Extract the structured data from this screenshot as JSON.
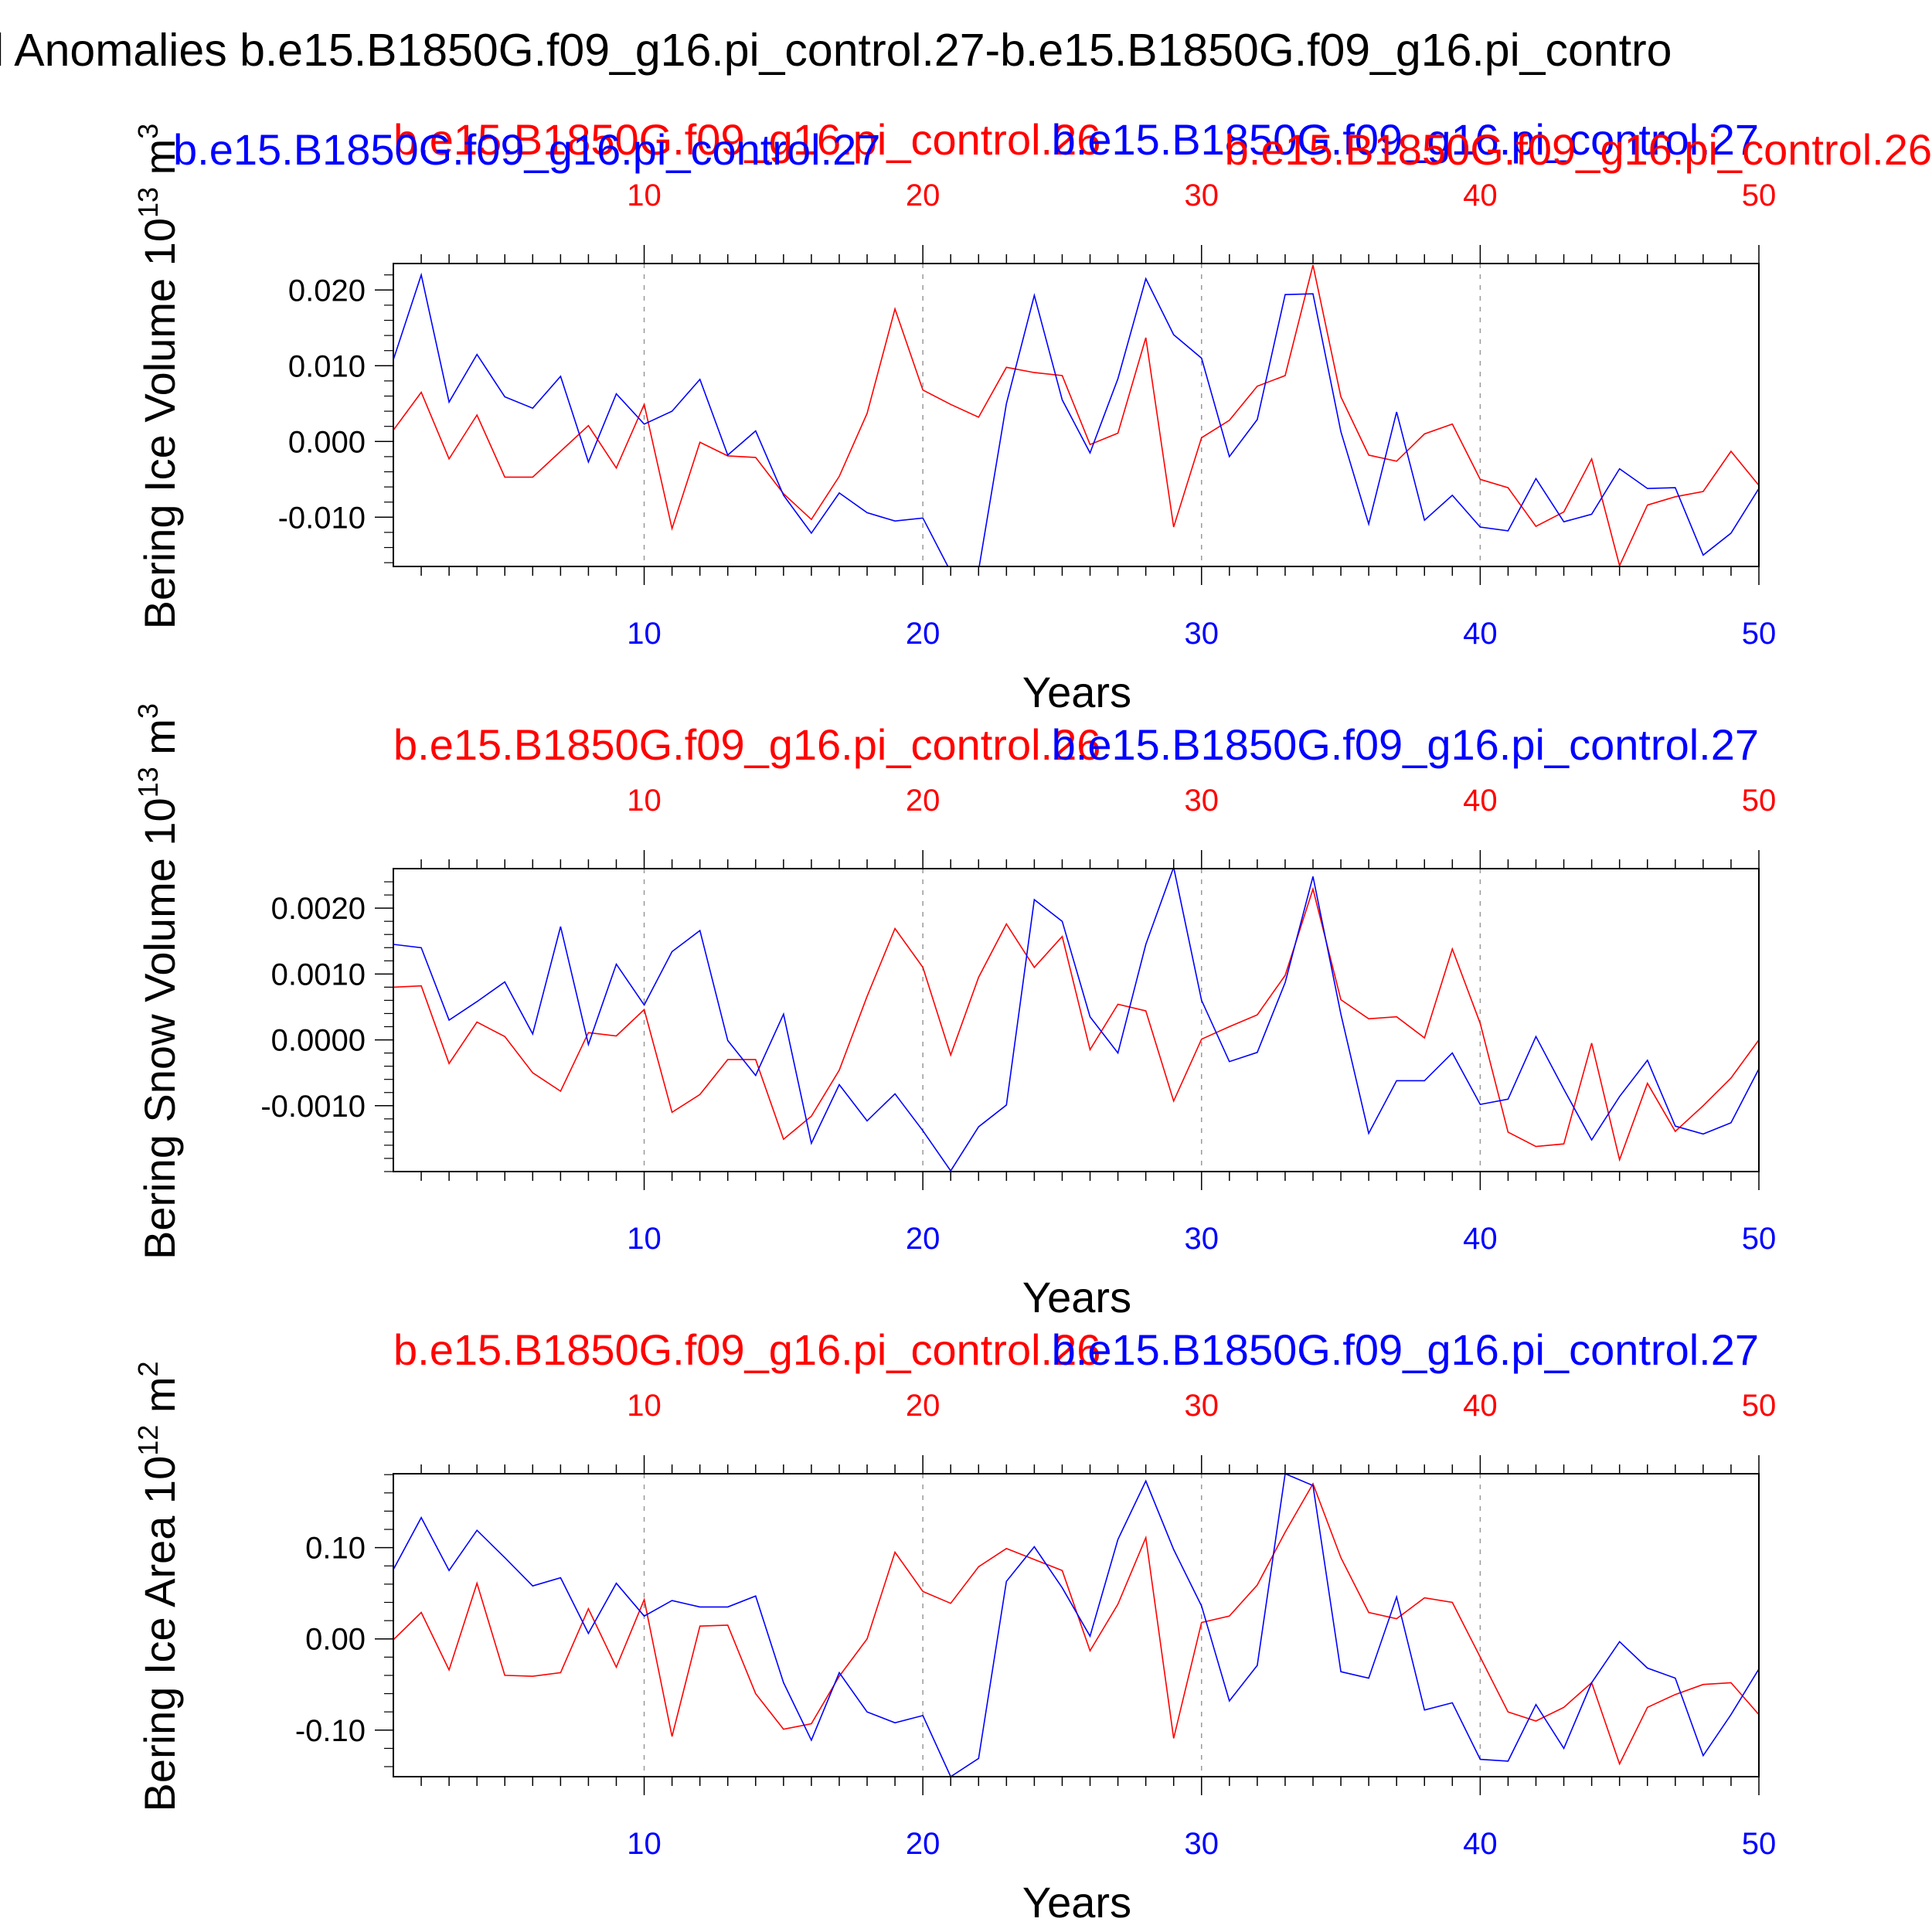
{
  "figure": {
    "title": "l Anomalies b.e15.B1850G.f09_g16.pi_control.27-b.e15.B1850G.f09_g16.pi_contro",
    "colors": {
      "red": "#ff0000",
      "blue": "#0000ff",
      "axis": "#000000",
      "grid": "#999999"
    }
  },
  "chart_data": [
    {
      "type": "line",
      "ylabel": "Bering Ice Volume 10",
      "ylabel_exp": "13",
      "ylabel_unit": " m",
      "ylabel_unit_exp": "3",
      "xlabel": "Years",
      "top_labels": [
        {
          "text": "b.e15.B1850G.f09_g16.pi_control.26",
          "color": "red"
        },
        {
          "text": "b.e15.B1850G.f09_g16.pi_control.27",
          "color": "blue"
        }
      ],
      "overlay_labels": [
        {
          "text": "b.e15.B1850G.f09_g16.pi_control.27",
          "color": "blue"
        },
        {
          "text": "b.e15.B1850G.f09_g16.pi_control.26",
          "color": "red"
        }
      ],
      "xlim": [
        1,
        50
      ],
      "ylim": [
        -0.0165,
        0.0235
      ],
      "xticks": [
        10,
        20,
        30,
        40,
        50
      ],
      "xtick_labels": [
        "10",
        "20",
        "30",
        "40",
        "50"
      ],
      "yticks": [
        0.02,
        0.01,
        0.0,
        -0.01
      ],
      "ytick_labels": [
        "0.020",
        "0.010",
        "0.000",
        "-0.010"
      ],
      "grid": "vertical dashed at 10,20,30,40",
      "series": [
        {
          "name": "b.e15.B1850G.f09_g16.pi_control.26",
          "color": "red",
          "values": [
            0.0015,
            0.0065,
            -0.0023,
            0.0035,
            -0.0047,
            -0.0047,
            -0.0013,
            0.0021,
            -0.0035,
            0.0049,
            -0.0115,
            -0.0001,
            -0.0019,
            -0.0021,
            -0.0069,
            -0.0103,
            -0.0046,
            0.0037,
            0.0175,
            0.0068,
            0.0049,
            0.0032,
            0.0098,
            0.0091,
            0.0087,
            -0.0004,
            0.0011,
            0.0137,
            -0.0113,
            0.0005,
            0.0028,
            0.0073,
            0.0087,
            0.0233,
            0.0059,
            -0.0018,
            -0.0026,
            0.001,
            0.0023,
            -0.005,
            -0.0061,
            -0.0112,
            -0.0093,
            -0.0023,
            -0.0164,
            -0.0084,
            -0.0073,
            -0.0066,
            -0.0013,
            -0.0058
          ]
        },
        {
          "name": "b.e15.B1850G.f09_g16.pi_control.27",
          "color": "blue",
          "values": [
            0.0108,
            0.022,
            0.0052,
            0.0115,
            0.0059,
            0.0044,
            0.0086,
            -0.0027,
            0.0063,
            0.0023,
            0.004,
            0.0082,
            -0.0018,
            0.0014,
            -0.0071,
            -0.0121,
            -0.0068,
            -0.0094,
            -0.0105,
            -0.0101,
            -0.0172,
            -0.017,
            0.005,
            0.0193,
            0.0055,
            -0.0015,
            0.0083,
            0.0215,
            0.0141,
            0.011,
            -0.002,
            0.0029,
            0.0194,
            0.0195,
            0.0013,
            -0.0109,
            0.0039,
            -0.0104,
            -0.0071,
            -0.0113,
            -0.0118,
            -0.0049,
            -0.0106,
            -0.0096,
            -0.0036,
            -0.0062,
            -0.0061,
            -0.015,
            -0.0121,
            -0.0062
          ]
        }
      ]
    },
    {
      "type": "line",
      "ylabel": "Bering Snow Volume 10",
      "ylabel_exp": "13",
      "ylabel_unit": " m",
      "ylabel_unit_exp": "3",
      "xlabel": "Years",
      "top_labels": [
        {
          "text": "b.e15.B1850G.f09_g16.pi_control.26",
          "color": "red"
        },
        {
          "text": "b.e15.B1850G.f09_g16.pi_control.27",
          "color": "blue"
        }
      ],
      "overlay_labels": [],
      "xlim": [
        1,
        50
      ],
      "ylim": [
        -0.002,
        0.0026
      ],
      "xticks": [
        10,
        20,
        30,
        40,
        50
      ],
      "xtick_labels": [
        "10",
        "20",
        "30",
        "40",
        "50"
      ],
      "yticks": [
        0.002,
        0.001,
        0.0,
        -0.001
      ],
      "ytick_labels": [
        "0.0020",
        "0.0010",
        "0.0000",
        "-0.0010"
      ],
      "grid": "vertical dashed at 10,20,30,40",
      "series": [
        {
          "name": "b.e15.B1850G.f09_g16.pi_control.26",
          "color": "red",
          "values": [
            0.0008,
            0.00082,
            -0.00036,
            0.00027,
            5e-05,
            -0.0005,
            -0.00078,
            0.00011,
            6e-05,
            0.00046,
            -0.0011,
            -0.00083,
            -0.0003,
            -0.0003,
            -0.00151,
            -0.00116,
            -0.00046,
            0.00066,
            0.00169,
            0.0011,
            -0.00023,
            0.00095,
            0.00176,
            0.0011,
            0.00157,
            -0.00015,
            0.00054,
            0.00044,
            -0.00093,
            1e-05,
            0.0002,
            0.00038,
            0.00098,
            0.00229,
            0.00061,
            0.00032,
            0.00035,
            3e-05,
            0.00138,
            0.00025,
            -0.0014,
            -0.00162,
            -0.00158,
            -5e-05,
            -0.00182,
            -0.00066,
            -0.00139,
            -0.001,
            -0.00058,
            0.0
          ]
        },
        {
          "name": "b.e15.B1850G.f09_g16.pi_control.27",
          "color": "blue",
          "values": [
            0.00145,
            0.0014,
            0.0003,
            0.00058,
            0.00088,
            9e-05,
            0.00172,
            -7e-05,
            0.00115,
            0.00053,
            0.00134,
            0.00166,
            -1e-05,
            -0.00054,
            0.00039,
            -0.00157,
            -0.00068,
            -0.00123,
            -0.00082,
            -0.00138,
            -0.00199,
            -0.00132,
            -0.00099,
            0.00213,
            0.0018,
            0.00035,
            -0.0002,
            0.00145,
            0.00262,
            0.0006,
            -0.00033,
            -0.00019,
            0.00087,
            0.00248,
            0.00039,
            -0.00142,
            -0.00062,
            -0.00062,
            -0.0002,
            -0.00098,
            -0.0009,
            5e-05,
            -0.00075,
            -0.00152,
            -0.00086,
            -0.00031,
            -0.00131,
            -0.00143,
            -0.00126,
            -0.00044
          ]
        }
      ]
    },
    {
      "type": "line",
      "ylabel": "Bering Ice Area 10",
      "ylabel_exp": "12",
      "ylabel_unit": " m",
      "ylabel_unit_exp": "2",
      "xlabel": "Years",
      "top_labels": [
        {
          "text": "b.e15.B1850G.f09_g16.pi_control.26",
          "color": "red"
        },
        {
          "text": "b.e15.B1850G.f09_g16.pi_control.27",
          "color": "blue"
        }
      ],
      "overlay_labels": [],
      "xlim": [
        1,
        50
      ],
      "ylim": [
        -0.151,
        0.181
      ],
      "xticks": [
        10,
        20,
        30,
        40,
        50
      ],
      "xtick_labels": [
        "10",
        "20",
        "30",
        "40",
        "50"
      ],
      "yticks": [
        0.1,
        0.0,
        -0.1
      ],
      "ytick_labels": [
        "0.10",
        "0.00",
        "-0.10"
      ],
      "grid": "vertical dashed at 10,20,30,40",
      "series": [
        {
          "name": "b.e15.B1850G.f09_g16.pi_control.26",
          "color": "red",
          "values": [
            -0.001,
            0.029,
            -0.034,
            0.061,
            -0.04,
            -0.041,
            -0.037,
            0.033,
            -0.031,
            0.043,
            -0.107,
            0.014,
            0.015,
            -0.06,
            -0.099,
            -0.093,
            -0.041,
            0.0,
            0.095,
            0.052,
            0.039,
            0.079,
            0.099,
            0.087,
            0.075,
            -0.013,
            0.038,
            0.111,
            -0.109,
            0.018,
            0.025,
            0.059,
            0.117,
            0.17,
            0.089,
            0.029,
            0.022,
            0.045,
            0.04,
            -0.02,
            -0.08,
            -0.09,
            -0.075,
            -0.048,
            -0.137,
            -0.075,
            -0.061,
            -0.05,
            -0.048,
            -0.083
          ]
        },
        {
          "name": "b.e15.B1850G.f09_g16.pi_control.27",
          "color": "blue",
          "values": [
            0.076,
            0.133,
            0.075,
            0.119,
            0.089,
            0.058,
            0.067,
            0.006,
            0.061,
            0.025,
            0.042,
            0.035,
            0.035,
            0.047,
            -0.048,
            -0.111,
            -0.037,
            -0.08,
            -0.092,
            -0.084,
            -0.151,
            -0.131,
            0.063,
            0.101,
            0.056,
            0.003,
            0.109,
            0.173,
            0.098,
            0.036,
            -0.068,
            -0.029,
            0.181,
            0.168,
            -0.036,
            -0.043,
            0.046,
            -0.078,
            -0.07,
            -0.132,
            -0.134,
            -0.072,
            -0.12,
            -0.048,
            -0.003,
            -0.032,
            -0.043,
            -0.128,
            -0.083,
            -0.033
          ]
        }
      ]
    }
  ]
}
